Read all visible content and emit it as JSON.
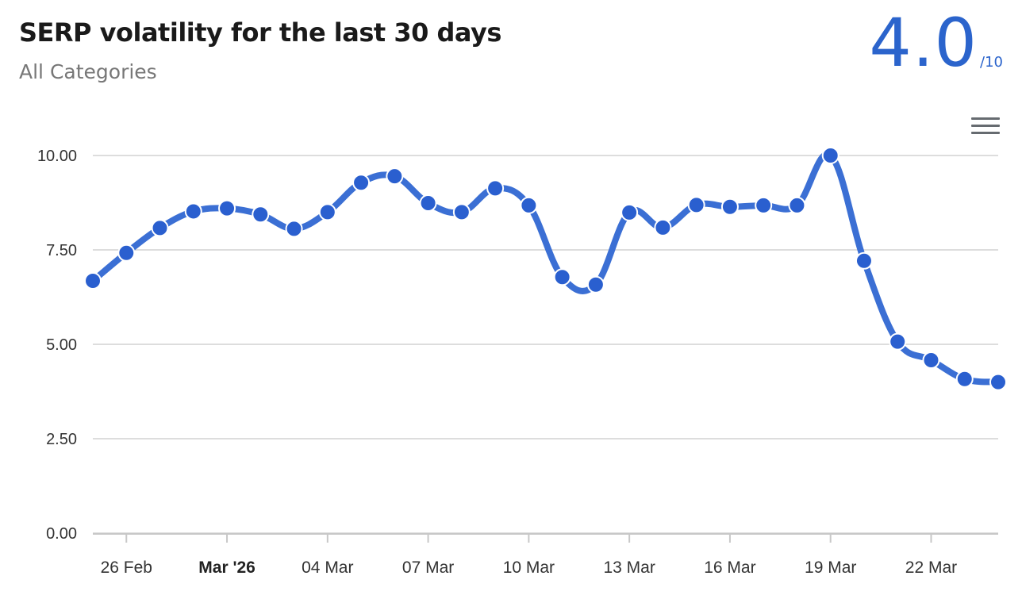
{
  "header": {
    "title": "SERP volatility for the last 30 days",
    "subtitle": "All Categories",
    "score": "4.0",
    "score_max": "/10"
  },
  "colors": {
    "series": "#3b6fd4",
    "point": "#2a5fcf",
    "accent": "#2b64cc",
    "grid": "#dddddd"
  },
  "icons": {
    "menu": "hamburger-menu-icon"
  },
  "chart_data": {
    "type": "line",
    "title": "SERP volatility for the last 30 days",
    "subtitle": "All Categories",
    "ylim": [
      0,
      10
    ],
    "yticks": [
      "0.00",
      "2.50",
      "5.00",
      "7.50",
      "10.00"
    ],
    "ytick_values": [
      0,
      2.5,
      5,
      7.5,
      10
    ],
    "x_start": "2026-02-25",
    "xticks": [
      {
        "label": "26 Feb",
        "day": 1
      },
      {
        "label": "Mar '26",
        "day": 4,
        "bold": true
      },
      {
        "label": "04 Mar",
        "day": 7
      },
      {
        "label": "07 Mar",
        "day": 10
      },
      {
        "label": "10 Mar",
        "day": 13
      },
      {
        "label": "13 Mar",
        "day": 16
      },
      {
        "label": "16 Mar",
        "day": 19
      },
      {
        "label": "19 Mar",
        "day": 22
      },
      {
        "label": "22 Mar",
        "day": 25
      }
    ],
    "grid": true,
    "legend": false,
    "series": [
      {
        "values": [
          6.68,
          7.42,
          8.08,
          8.52,
          8.6,
          8.44,
          8.06,
          8.5,
          9.28,
          9.45,
          8.74,
          8.5,
          9.13,
          8.68,
          6.78,
          6.58,
          8.49,
          8.09,
          8.69,
          8.64,
          8.68,
          8.68,
          10.0,
          7.21,
          5.07,
          4.58,
          4.08,
          4.0
        ]
      }
    ]
  }
}
